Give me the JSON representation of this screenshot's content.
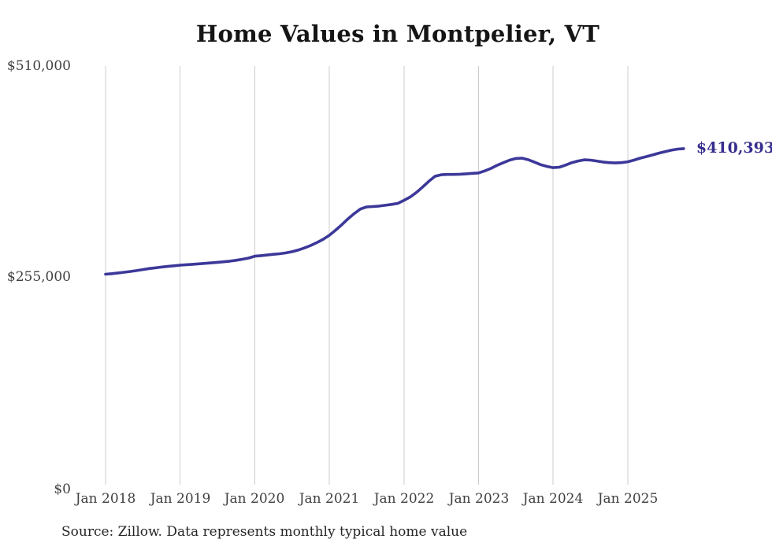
{
  "title": "Home Values in Montpelier, VT",
  "source_note": "Source: Zillow. Data represents monthly typical home value",
  "end_label": "$410,393",
  "colors": {
    "line": "#3c3899",
    "end_label": "#352e8e",
    "gridline": "#cccccc",
    "tick_text": "#404040",
    "title_text": "#151515"
  },
  "chart_data": {
    "type": "line",
    "title": "Home Values in Montpelier, VT",
    "xlabel": "",
    "ylabel": "",
    "ylim": [
      0,
      510000
    ],
    "grid": "vertical-only",
    "legend": "none",
    "x_start_month": "Jan 2018",
    "x_end_month": "Oct 2025",
    "x_tick_labels": [
      "Jan 2018",
      "Jan 2019",
      "Jan 2020",
      "Jan 2021",
      "Jan 2022",
      "Jan 2023",
      "Jan 2024",
      "Jan 2025"
    ],
    "y_tick_labels": [
      "$510,000",
      "$255,000",
      "$0"
    ],
    "y_tick_values": [
      510000,
      255000,
      0
    ],
    "final_value": 410393,
    "values": [
      258800,
      259500,
      260300,
      261200,
      262100,
      263200,
      264400,
      265600,
      266500,
      267400,
      268200,
      269000,
      269700,
      270300,
      270800,
      271300,
      271900,
      272500,
      273100,
      273800,
      274600,
      275600,
      276800,
      278300,
      280500,
      281200,
      282000,
      282800,
      283500,
      284500,
      286000,
      288000,
      290500,
      293500,
      297000,
      301000,
      305800,
      312000,
      318500,
      325700,
      332000,
      337500,
      340000,
      340500,
      341000,
      342000,
      343000,
      344300,
      348000,
      352000,
      357500,
      364000,
      371000,
      377000,
      378800,
      379200,
      379200,
      379500,
      380000,
      380600,
      381000,
      383500,
      386500,
      390300,
      393500,
      396500,
      398500,
      398900,
      397000,
      394000,
      391000,
      388900,
      387400,
      388000,
      390500,
      393500,
      395500,
      396900,
      396500,
      395500,
      394200,
      393500,
      393100,
      393500,
      394500,
      396500,
      398900,
      400800,
      402800,
      405000,
      406800,
      408500,
      409800,
      410393
    ]
  }
}
